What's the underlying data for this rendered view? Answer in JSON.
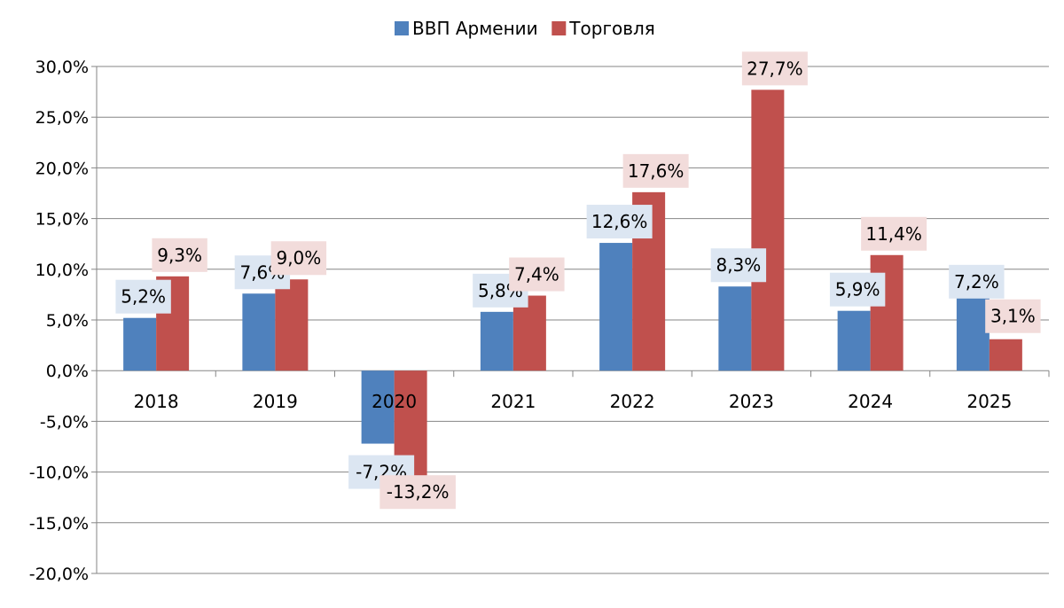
{
  "chart_data": {
    "type": "bar",
    "title": "",
    "xlabel": "",
    "ylabel": "",
    "categories": [
      "2018",
      "2019",
      "2020",
      "2021",
      "2022",
      "2023",
      "2024",
      "2025"
    ],
    "series": [
      {
        "name": "ВВП Армении",
        "color": "#4F81BD",
        "label_bg": "#DCE6F2",
        "values": [
          5.2,
          7.6,
          -7.2,
          5.8,
          12.6,
          8.3,
          5.9,
          7.2
        ],
        "labels": [
          "5,2%",
          "7,6%",
          "-7,2%",
          "5,8%",
          "12,6%",
          "8,3%",
          "5,9%",
          "7,2%"
        ]
      },
      {
        "name": "Торговля",
        "color": "#C0504D",
        "label_bg": "#F2DCDB",
        "values": [
          9.3,
          9.0,
          -13.2,
          7.4,
          17.6,
          27.7,
          11.4,
          3.1
        ],
        "labels": [
          "9,3%",
          "9,0%",
          "-13,2%",
          "7,4%",
          "17,6%",
          "27,7%",
          "11,4%",
          "3,1%"
        ]
      }
    ],
    "ylim": [
      -20,
      30
    ],
    "yticks": [
      30,
      25,
      20,
      15,
      10,
      5,
      0,
      -5,
      -10,
      -15,
      -20
    ],
    "ytick_labels": [
      "30,0%",
      "25,0%",
      "20,0%",
      "15,0%",
      "10,0%",
      "5,0%",
      "0,0%",
      "-5,0%",
      "-10,0%",
      "-15,0%",
      "-20,0%"
    ],
    "grid": true,
    "legend_position": "top-center"
  }
}
